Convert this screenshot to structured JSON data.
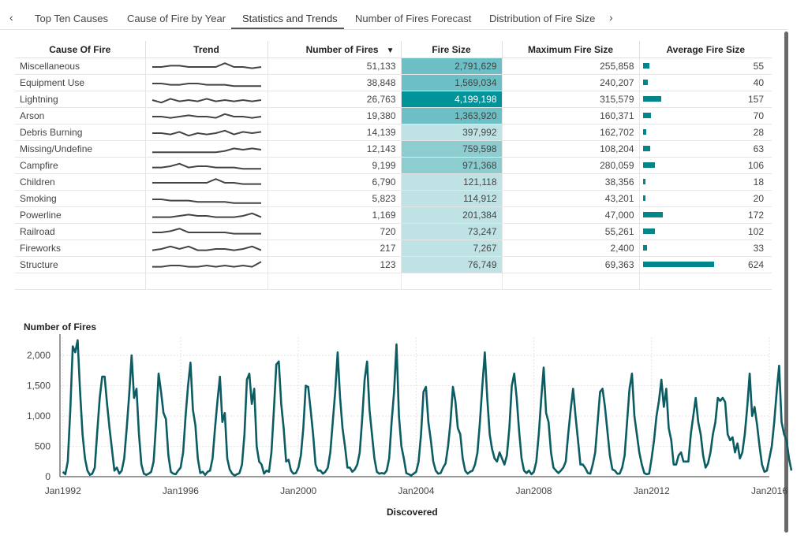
{
  "tabs": {
    "prev_arrow": "‹",
    "next_arrow": "›",
    "items": [
      {
        "label": "Top Ten Causes"
      },
      {
        "label": "Cause of Fire by Year"
      },
      {
        "label": "Statistics and Trends",
        "active": true
      },
      {
        "label": "Number of Fires Forecast"
      },
      {
        "label": "Distribution of Fire Size"
      }
    ]
  },
  "table": {
    "columns": {
      "cause": "Cause Of Fire",
      "trend": "Trend",
      "number": "Number of Fires",
      "size": "Fire Size",
      "max": "Maximum Fire Size",
      "avg": "Average Fire Size"
    },
    "sort_indicator": "▼",
    "heat_colors": [
      "#bfe3e5",
      "#8dcdd0",
      "#6cbfc4",
      "#00949a"
    ],
    "bar_color": "#00868b",
    "rows": [
      {
        "cause": "Miscellaneous",
        "number": "51,133",
        "size": "2,791,629",
        "max": "255,858",
        "avg": "55"
      },
      {
        "cause": "Equipment Use",
        "number": "38,848",
        "size": "1,569,034",
        "max": "240,207",
        "avg": "40"
      },
      {
        "cause": "Lightning",
        "number": "26,763",
        "size": "4,199,198",
        "max": "315,579",
        "avg": "157"
      },
      {
        "cause": "Arson",
        "number": "19,380",
        "size": "1,363,920",
        "max": "160,371",
        "avg": "70"
      },
      {
        "cause": "Debris Burning",
        "number": "14,139",
        "size": "397,992",
        "max": "162,702",
        "avg": "28"
      },
      {
        "cause": "Missing/Undefine",
        "number": "12,143",
        "size": "759,598",
        "max": "108,204",
        "avg": "63"
      },
      {
        "cause": "Campfire",
        "number": "9,199",
        "size": "971,368",
        "max": "280,059",
        "avg": "106"
      },
      {
        "cause": "Children",
        "number": "6,790",
        "size": "121,118",
        "max": "38,356",
        "avg": "18"
      },
      {
        "cause": "Smoking",
        "number": "5,823",
        "size": "114,912",
        "max": "43,201",
        "avg": "20"
      },
      {
        "cause": "Powerline",
        "number": "1,169",
        "size": "201,384",
        "max": "47,000",
        "avg": "172"
      },
      {
        "cause": "Railroad",
        "number": "720",
        "size": "73,247",
        "max": "55,261",
        "avg": "102"
      },
      {
        "cause": "Fireworks",
        "number": "217",
        "size": "7,267",
        "max": "2,400",
        "avg": "33"
      },
      {
        "cause": "Structure",
        "number": "123",
        "size": "76,749",
        "max": "69,363",
        "avg": "624"
      }
    ]
  },
  "chart_data": {
    "type": "line",
    "title": "",
    "ylabel": "Number of Fires",
    "xlabel": "Discovered",
    "ylim": [
      0,
      2300
    ],
    "yticks": [
      0,
      500,
      1000,
      1500,
      2000
    ],
    "ytick_labels": [
      "0",
      "500",
      "1,000",
      "1,500",
      "2,000"
    ],
    "xticks": [
      "Jan1992",
      "Jan1996",
      "Jan2000",
      "Jan2004",
      "Jan2008",
      "Jan2012",
      "Jan2016"
    ],
    "xtick_dates": [
      1992,
      1996,
      2000,
      2004,
      2008,
      2012,
      2016
    ],
    "xlim": [
      1991.9,
      2016.0
    ],
    "grid": true,
    "line_color": "#0b5d63",
    "series": [
      {
        "start": "1992-01",
        "frequency": "monthly",
        "values": [
          80,
          40,
          250,
          1100,
          2150,
          2050,
          2250,
          1400,
          700,
          300,
          100,
          30,
          50,
          150,
          750,
          1300,
          1650,
          1650,
          1200,
          800,
          450,
          100,
          150,
          50,
          100,
          300,
          800,
          1350,
          2000,
          1300,
          1450,
          700,
          200,
          50,
          30,
          50,
          80,
          250,
          900,
          1700,
          1400,
          1050,
          950,
          350,
          80,
          50,
          40,
          100,
          150,
          400,
          1000,
          1500,
          1880,
          1100,
          850,
          300,
          60,
          80,
          30,
          80,
          100,
          300,
          800,
          1250,
          1650,
          900,
          1050,
          300,
          120,
          50,
          20,
          40,
          60,
          200,
          700,
          1600,
          1700,
          1200,
          1450,
          500,
          250,
          200,
          50,
          100,
          80,
          400,
          1100,
          1850,
          1900,
          1200,
          800,
          250,
          280,
          100,
          50,
          60,
          150,
          350,
          800,
          1500,
          1480,
          1100,
          700,
          200,
          100,
          100,
          50,
          80,
          150,
          400,
          900,
          1400,
          2050,
          1300,
          800,
          500,
          150,
          150,
          80,
          120,
          200,
          400,
          950,
          1600,
          1900,
          1100,
          700,
          300,
          80,
          50,
          60,
          50,
          100,
          300,
          900,
          1400,
          2180,
          1000,
          500,
          300,
          60,
          40,
          20,
          50,
          80,
          250,
          700,
          1400,
          1480,
          900,
          600,
          250,
          100,
          50,
          60,
          150,
          220,
          500,
          900,
          1480,
          1250,
          800,
          700,
          300,
          100,
          50,
          80,
          100,
          200,
          400,
          900,
          1500,
          2050,
          1300,
          700,
          450,
          300,
          250,
          400,
          300,
          200,
          350,
          800,
          1500,
          1700,
          1300,
          750,
          300,
          100,
          60,
          100,
          40,
          80,
          250,
          700,
          1280,
          1800,
          1050,
          900,
          400,
          150,
          100,
          60,
          100,
          150,
          250,
          700,
          1100,
          1450,
          1000,
          600,
          200,
          200,
          140,
          60,
          50,
          200,
          400,
          900,
          1400,
          1450,
          1150,
          750,
          350,
          120,
          100,
          50,
          50,
          150,
          350,
          900,
          1450,
          1700,
          1000,
          700,
          400,
          200,
          60,
          40,
          50,
          300,
          600,
          1000,
          1250,
          1600,
          1150,
          1450,
          800,
          600,
          200,
          200,
          350,
          400,
          250,
          250,
          250,
          700,
          1000,
          1300,
          900,
          700,
          350,
          150,
          220,
          400,
          700,
          900,
          1300,
          1250,
          1300,
          1230,
          700,
          600,
          650,
          400,
          550,
          300,
          400,
          700,
          1150,
          1700,
          1000,
          1150,
          850,
          500,
          200,
          80,
          100,
          300,
          500,
          900,
          1400,
          1830,
          900,
          700,
          600,
          300,
          100
        ]
      }
    ]
  }
}
